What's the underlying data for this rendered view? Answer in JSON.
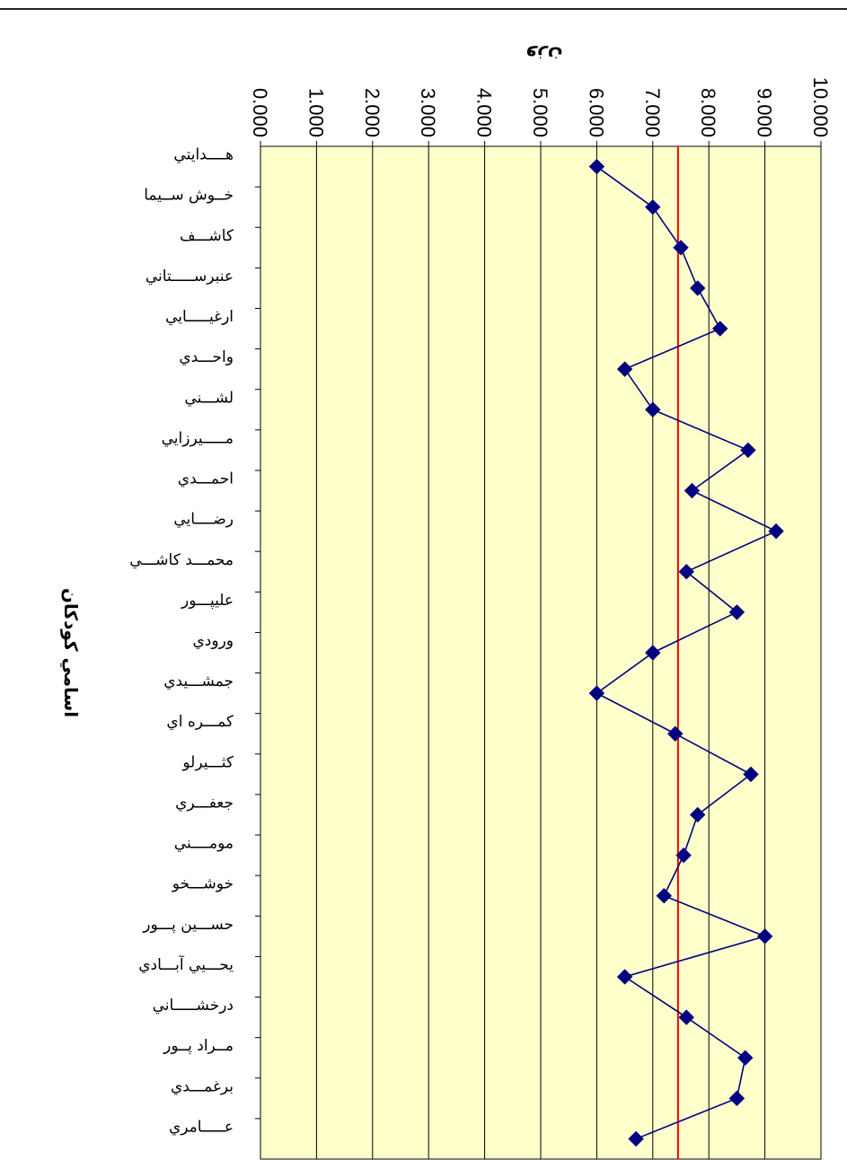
{
  "chart_data": {
    "type": "line",
    "xlabel": "وزن",
    "ylabel": "اسامي كودكان",
    "xlim": [
      0,
      10
    ],
    "x_ticks": [
      "0.000",
      "1.000",
      "2.000",
      "3.000",
      "4.000",
      "5.000",
      "6.000",
      "7.000",
      "8.000",
      "9.000",
      "10.000"
    ],
    "categories": [
      "هــــدايتي",
      "خــوش ســيما",
      "كاشـــف",
      "عنبرســـــتاني",
      "ارغيـــــايي",
      "واحـــدي",
      "لشـــني",
      "مـــــيرزايي",
      "احمـــدي",
      "رضــــايي",
      "محمـــد كاشـــي",
      "عليپـــور",
      "ورودي",
      "جمشـــيدي",
      "كمـــره اي",
      "كثـــيرلو",
      "جعفـــري",
      "مومــــني",
      "خوشـــخو",
      "حســـين پـــور",
      "يحـــيي آبـــادي",
      "درخشـــــاني",
      "مــراد پــور",
      "برغمـــدي",
      "عـــــامري"
    ],
    "values": [
      6.0,
      7.0,
      7.5,
      7.8,
      8.2,
      6.5,
      7.0,
      8.7,
      7.7,
      9.2,
      7.6,
      8.5,
      7.0,
      6.0,
      7.4,
      8.75,
      7.8,
      7.55,
      7.2,
      9.0,
      6.5,
      7.6,
      8.65,
      8.5,
      6.7
    ],
    "reference_line": 7.45,
    "grid": true,
    "colors": {
      "plot_background": "#ffffcc",
      "line": "#000080",
      "marker": "#000080",
      "reference_line": "#ff0000",
      "grid": "#000000"
    }
  }
}
